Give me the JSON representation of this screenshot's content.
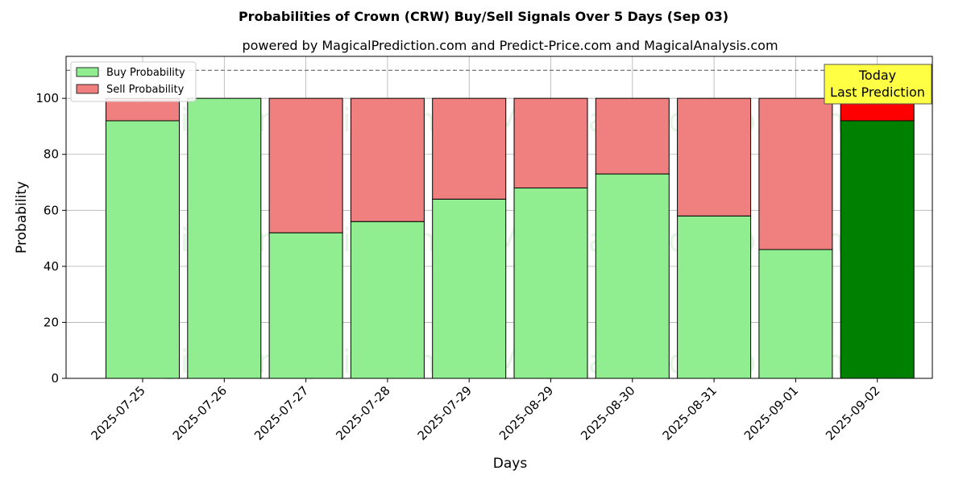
{
  "chart_data": {
    "type": "bar",
    "stacked": true,
    "title": "Probabilities of Crown (CRW) Buy/Sell Signals Over 5 Days (Sep 03)",
    "subtitle": "powered by MagicalPrediction.com and Predict-Price.com and MagicalAnalysis.com",
    "xlabel": "Days",
    "ylabel": "Probability",
    "ylim": [
      0,
      115
    ],
    "yticks": [
      0,
      20,
      40,
      60,
      80,
      100
    ],
    "categories": [
      "2025-07-25",
      "2025-07-26",
      "2025-07-27",
      "2025-07-28",
      "2025-07-29",
      "2025-08-29",
      "2025-08-30",
      "2025-08-31",
      "2025-09-01",
      "2025-09-02"
    ],
    "series": [
      {
        "name": "Buy Probability",
        "values": [
          92,
          100,
          52,
          56,
          64,
          68,
          73,
          58,
          46,
          92
        ],
        "color": "#90ee90",
        "highlight_color": "#008000"
      },
      {
        "name": "Sell Probability",
        "values": [
          8,
          0,
          48,
          44,
          36,
          32,
          27,
          42,
          54,
          8
        ],
        "color": "#f08080",
        "highlight_color": "#ff0000"
      }
    ],
    "highlight_index": 9,
    "reference_line": 110,
    "grid": true,
    "legend_position": "top-left",
    "annotation": {
      "line1": "Today",
      "line2": "Last Prediction",
      "background": "#ffff44"
    },
    "watermarks": [
      "MagicalAnalysis.com",
      "MagicalPrediction.com"
    ]
  }
}
